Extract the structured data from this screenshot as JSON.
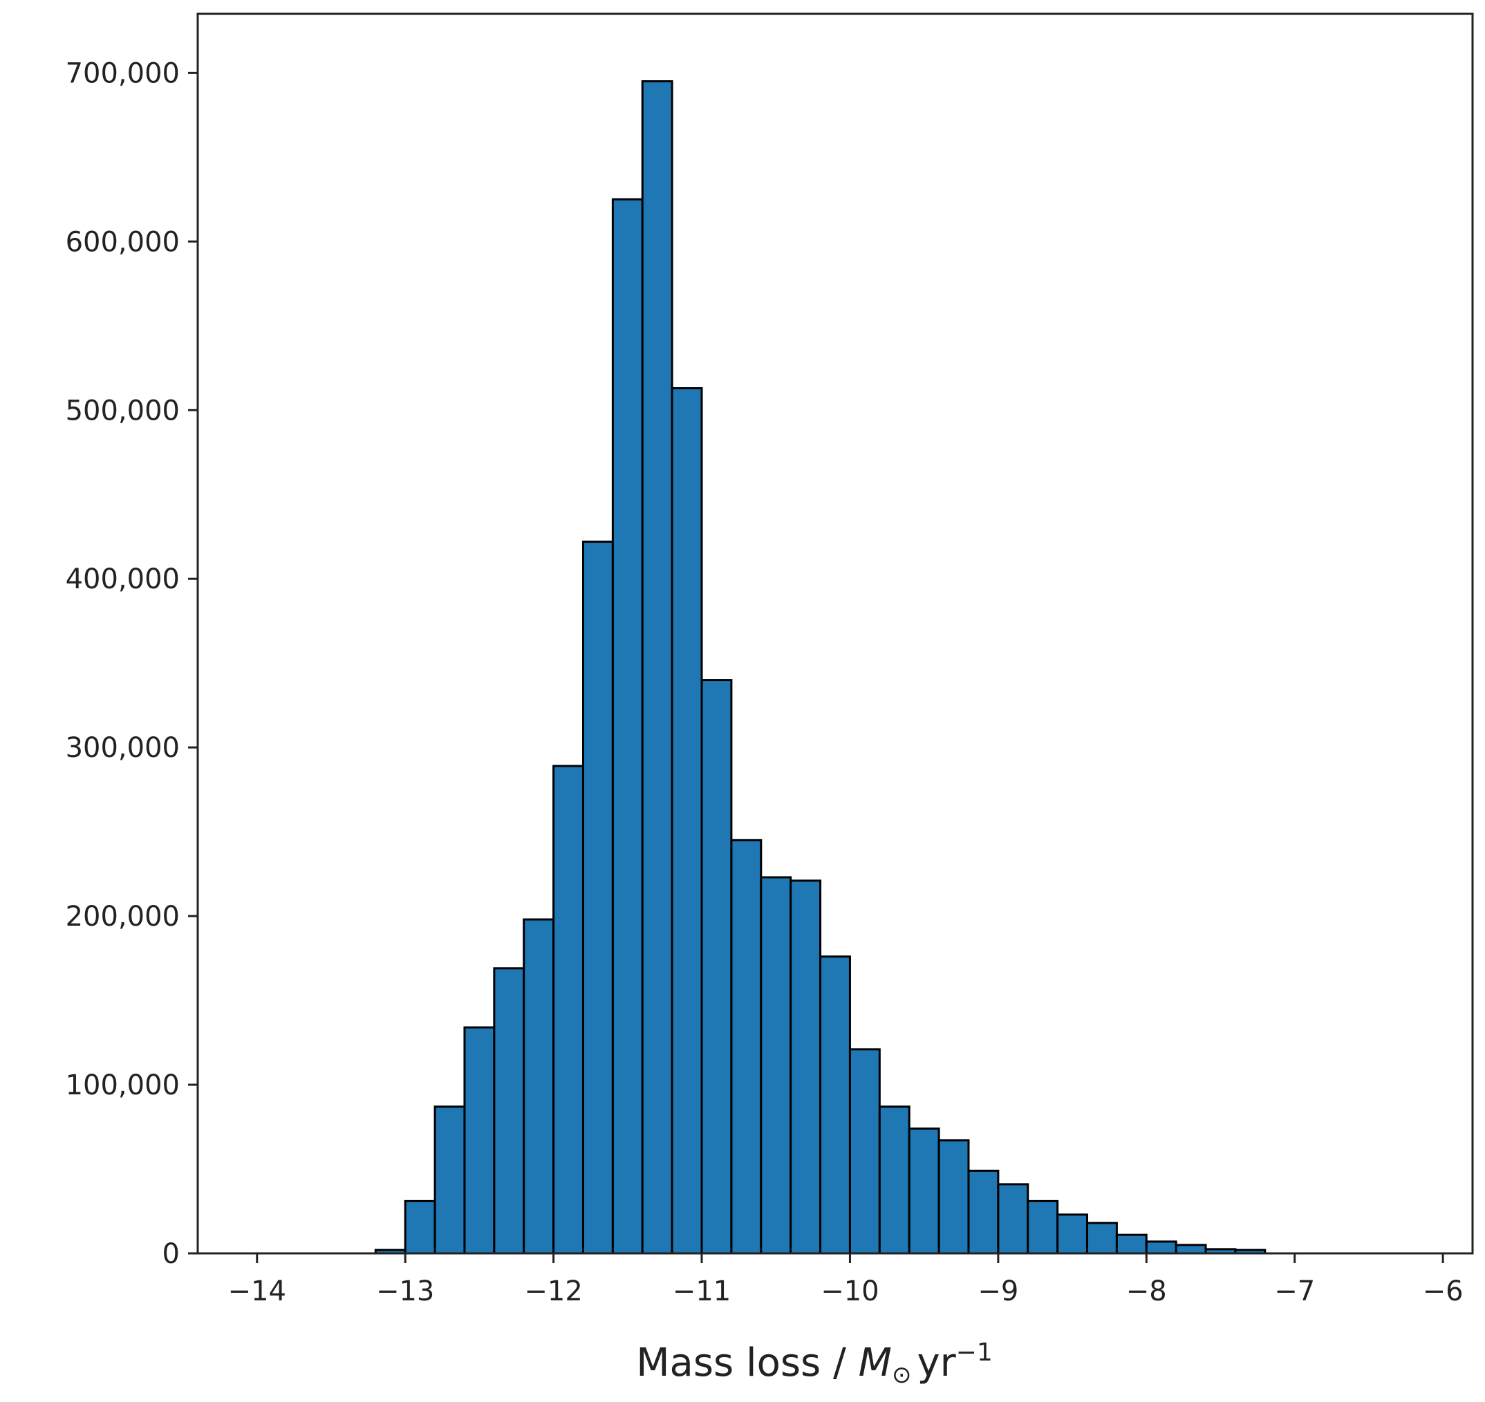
{
  "chart_data": {
    "type": "bar",
    "title": "",
    "xlabel": {
      "prefix": "Mass loss / ",
      "symbol": "M",
      "subscript": "⊙",
      "unit": "yr",
      "superscript": "−1"
    },
    "ylabel": "",
    "xlim": [
      -14.4,
      -5.8
    ],
    "ylim": [
      0,
      735000
    ],
    "bin_width": 0.2,
    "xticks": [
      -14,
      -13,
      -12,
      -11,
      -10,
      -9,
      -8,
      -7,
      -6
    ],
    "xtick_labels": [
      "−14",
      "−13",
      "−12",
      "−11",
      "−10",
      "−9",
      "−8",
      "−7",
      "−6"
    ],
    "yticks": [
      0,
      100000,
      200000,
      300000,
      400000,
      500000,
      600000,
      700000
    ],
    "ytick_labels": [
      "0",
      "100,000",
      "200,000",
      "300,000",
      "400,000",
      "500,000",
      "600,000",
      "700,000"
    ],
    "bins": [
      {
        "x0": -13.2,
        "x1": -13.0,
        "count": 2000
      },
      {
        "x0": -13.0,
        "x1": -12.8,
        "count": 31000
      },
      {
        "x0": -12.8,
        "x1": -12.6,
        "count": 87000
      },
      {
        "x0": -12.6,
        "x1": -12.4,
        "count": 134000
      },
      {
        "x0": -12.4,
        "x1": -12.2,
        "count": 169000
      },
      {
        "x0": -12.2,
        "x1": -12.0,
        "count": 198000
      },
      {
        "x0": -12.0,
        "x1": -11.8,
        "count": 289000
      },
      {
        "x0": -11.8,
        "x1": -11.6,
        "count": 422000
      },
      {
        "x0": -11.6,
        "x1": -11.4,
        "count": 625000
      },
      {
        "x0": -11.4,
        "x1": -11.2,
        "count": 695000
      },
      {
        "x0": -11.2,
        "x1": -11.0,
        "count": 513000
      },
      {
        "x0": -11.0,
        "x1": -10.8,
        "count": 340000
      },
      {
        "x0": -10.8,
        "x1": -10.6,
        "count": 245000
      },
      {
        "x0": -10.6,
        "x1": -10.4,
        "count": 223000
      },
      {
        "x0": -10.4,
        "x1": -10.2,
        "count": 221000
      },
      {
        "x0": -10.2,
        "x1": -10.0,
        "count": 176000
      },
      {
        "x0": -10.0,
        "x1": -9.8,
        "count": 121000
      },
      {
        "x0": -9.8,
        "x1": -9.6,
        "count": 87000
      },
      {
        "x0": -9.6,
        "x1": -9.4,
        "count": 74000
      },
      {
        "x0": -9.4,
        "x1": -9.2,
        "count": 67000
      },
      {
        "x0": -9.2,
        "x1": -9.0,
        "count": 49000
      },
      {
        "x0": -9.0,
        "x1": -8.8,
        "count": 41000
      },
      {
        "x0": -8.8,
        "x1": -8.6,
        "count": 31000
      },
      {
        "x0": -8.6,
        "x1": -8.4,
        "count": 23000
      },
      {
        "x0": -8.4,
        "x1": -8.2,
        "count": 18000
      },
      {
        "x0": -8.2,
        "x1": -8.0,
        "count": 11000
      },
      {
        "x0": -8.0,
        "x1": -7.8,
        "count": 7000
      },
      {
        "x0": -7.8,
        "x1": -7.6,
        "count": 5000
      },
      {
        "x0": -7.6,
        "x1": -7.4,
        "count": 2500
      },
      {
        "x0": -7.4,
        "x1": -7.2,
        "count": 2000
      }
    ],
    "grid": false,
    "legend": "none",
    "colors": {
      "bar_fill": "#1f77b4",
      "bar_edge": "#000000",
      "axis": "#222222"
    }
  }
}
